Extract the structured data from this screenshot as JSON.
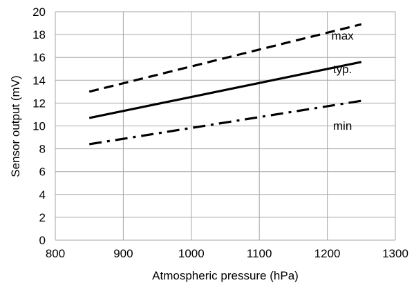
{
  "chart_data": {
    "type": "line",
    "xlabel": "Atmospheric pressure (hPa)",
    "ylabel": "Sensor output (mV)",
    "xlim": [
      800,
      1300
    ],
    "ylim": [
      0,
      20
    ],
    "xticks": [
      800,
      900,
      1000,
      1100,
      1200,
      1300
    ],
    "yticks": [
      0,
      2,
      4,
      6,
      8,
      10,
      12,
      14,
      16,
      18,
      20
    ],
    "grid": true,
    "series": [
      {
        "name": "max",
        "style": "dashed",
        "x": [
          850,
          1250
        ],
        "y": [
          13.0,
          18.9
        ]
      },
      {
        "name": "typ.",
        "style": "solid",
        "x": [
          850,
          1250
        ],
        "y": [
          10.7,
          15.6
        ]
      },
      {
        "name": "min",
        "style": "dash-dot",
        "x": [
          850,
          1250
        ],
        "y": [
          8.4,
          12.2
        ]
      }
    ],
    "colors": {
      "line": "#000000",
      "grid": "#a6a6a6"
    }
  }
}
